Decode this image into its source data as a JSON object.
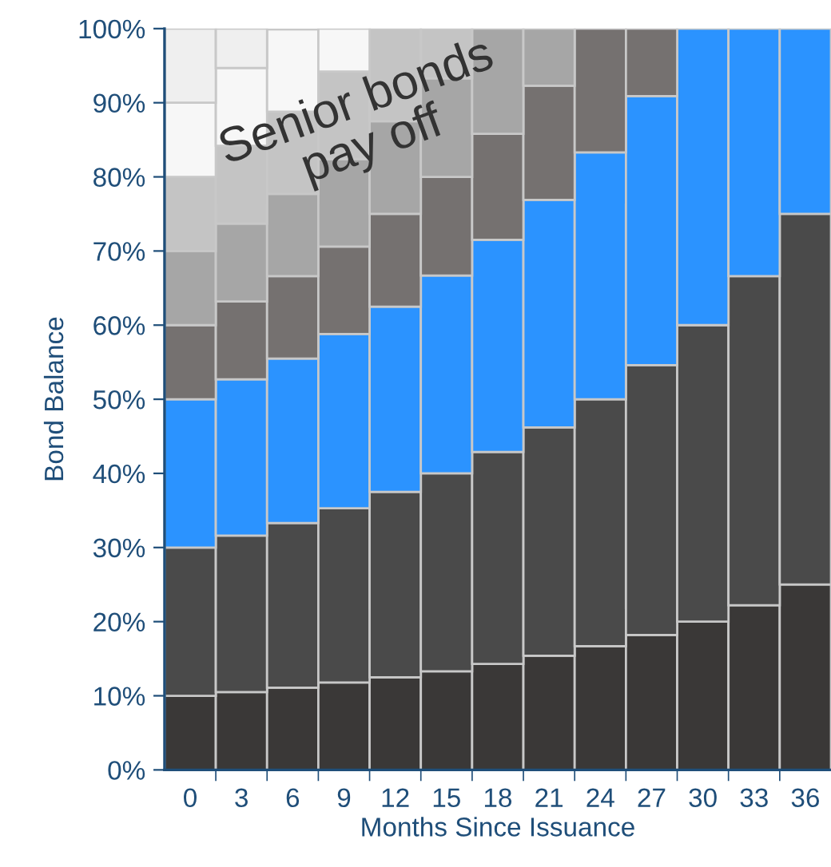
{
  "chart_data": {
    "type": "bar",
    "stacked": true,
    "xlabel": "Months Since Issuance",
    "ylabel": "Bond Balance",
    "categories": [
      "0",
      "3",
      "6",
      "9",
      "12",
      "15",
      "18",
      "21",
      "24",
      "27",
      "30",
      "33",
      "36"
    ],
    "series": [
      {
        "color": "#3a3837",
        "values": [
          10,
          10.5,
          11.1,
          11.8,
          12.5,
          13.3,
          14.3,
          15.4,
          16.7,
          18.2,
          20,
          22.2,
          25
        ]
      },
      {
        "color": "#4a4a4a",
        "values": [
          20,
          21.1,
          22.2,
          23.5,
          25,
          26.7,
          28.6,
          30.8,
          33.3,
          36.4,
          40,
          44.4,
          50
        ]
      },
      {
        "color": "#2b93ff",
        "values": [
          20,
          21.1,
          22.2,
          23.5,
          25,
          26.7,
          28.6,
          30.7,
          33.3,
          36.3,
          40,
          33.4,
          25
        ]
      },
      {
        "color": "#757170",
        "values": [
          10,
          10.5,
          11.1,
          11.8,
          12.5,
          13.3,
          14.3,
          15.4,
          16.7,
          9.1,
          0,
          0,
          0
        ]
      },
      {
        "color": "#a6a6a6",
        "values": [
          10,
          10.5,
          11.1,
          11.8,
          12.5,
          13.3,
          14.2,
          7.7,
          0,
          0,
          0,
          0,
          0
        ]
      },
      {
        "color": "#c4c4c4",
        "values": [
          10,
          10.5,
          11.1,
          11.8,
          12.5,
          6.7,
          0,
          0,
          0,
          0,
          0,
          0,
          0
        ]
      },
      {
        "color": "#f7f7f7",
        "values": [
          10,
          10.5,
          11.1,
          5.8,
          0,
          0,
          0,
          0,
          0,
          0,
          0,
          0,
          0
        ]
      },
      {
        "color": "#efefef",
        "values": [
          10,
          5.3,
          0,
          0,
          0,
          0,
          0,
          0,
          0,
          0,
          0,
          0,
          0
        ]
      }
    ],
    "ylim": [
      0,
      100
    ],
    "yticks": [
      {
        "value": 0,
        "label": "0%"
      },
      {
        "value": 10,
        "label": "10%"
      },
      {
        "value": 20,
        "label": "20%"
      },
      {
        "value": 30,
        "label": "30%"
      },
      {
        "value": 40,
        "label": "40%"
      },
      {
        "value": 50,
        "label": "50%"
      },
      {
        "value": 60,
        "label": "60%"
      },
      {
        "value": 70,
        "label": "70%"
      },
      {
        "value": 80,
        "label": "80%"
      },
      {
        "value": 90,
        "label": "90%"
      },
      {
        "value": 100,
        "label": "100%"
      }
    ],
    "annotations": [
      "Senior bonds\npay off"
    ],
    "grid": false,
    "legend": false
  }
}
